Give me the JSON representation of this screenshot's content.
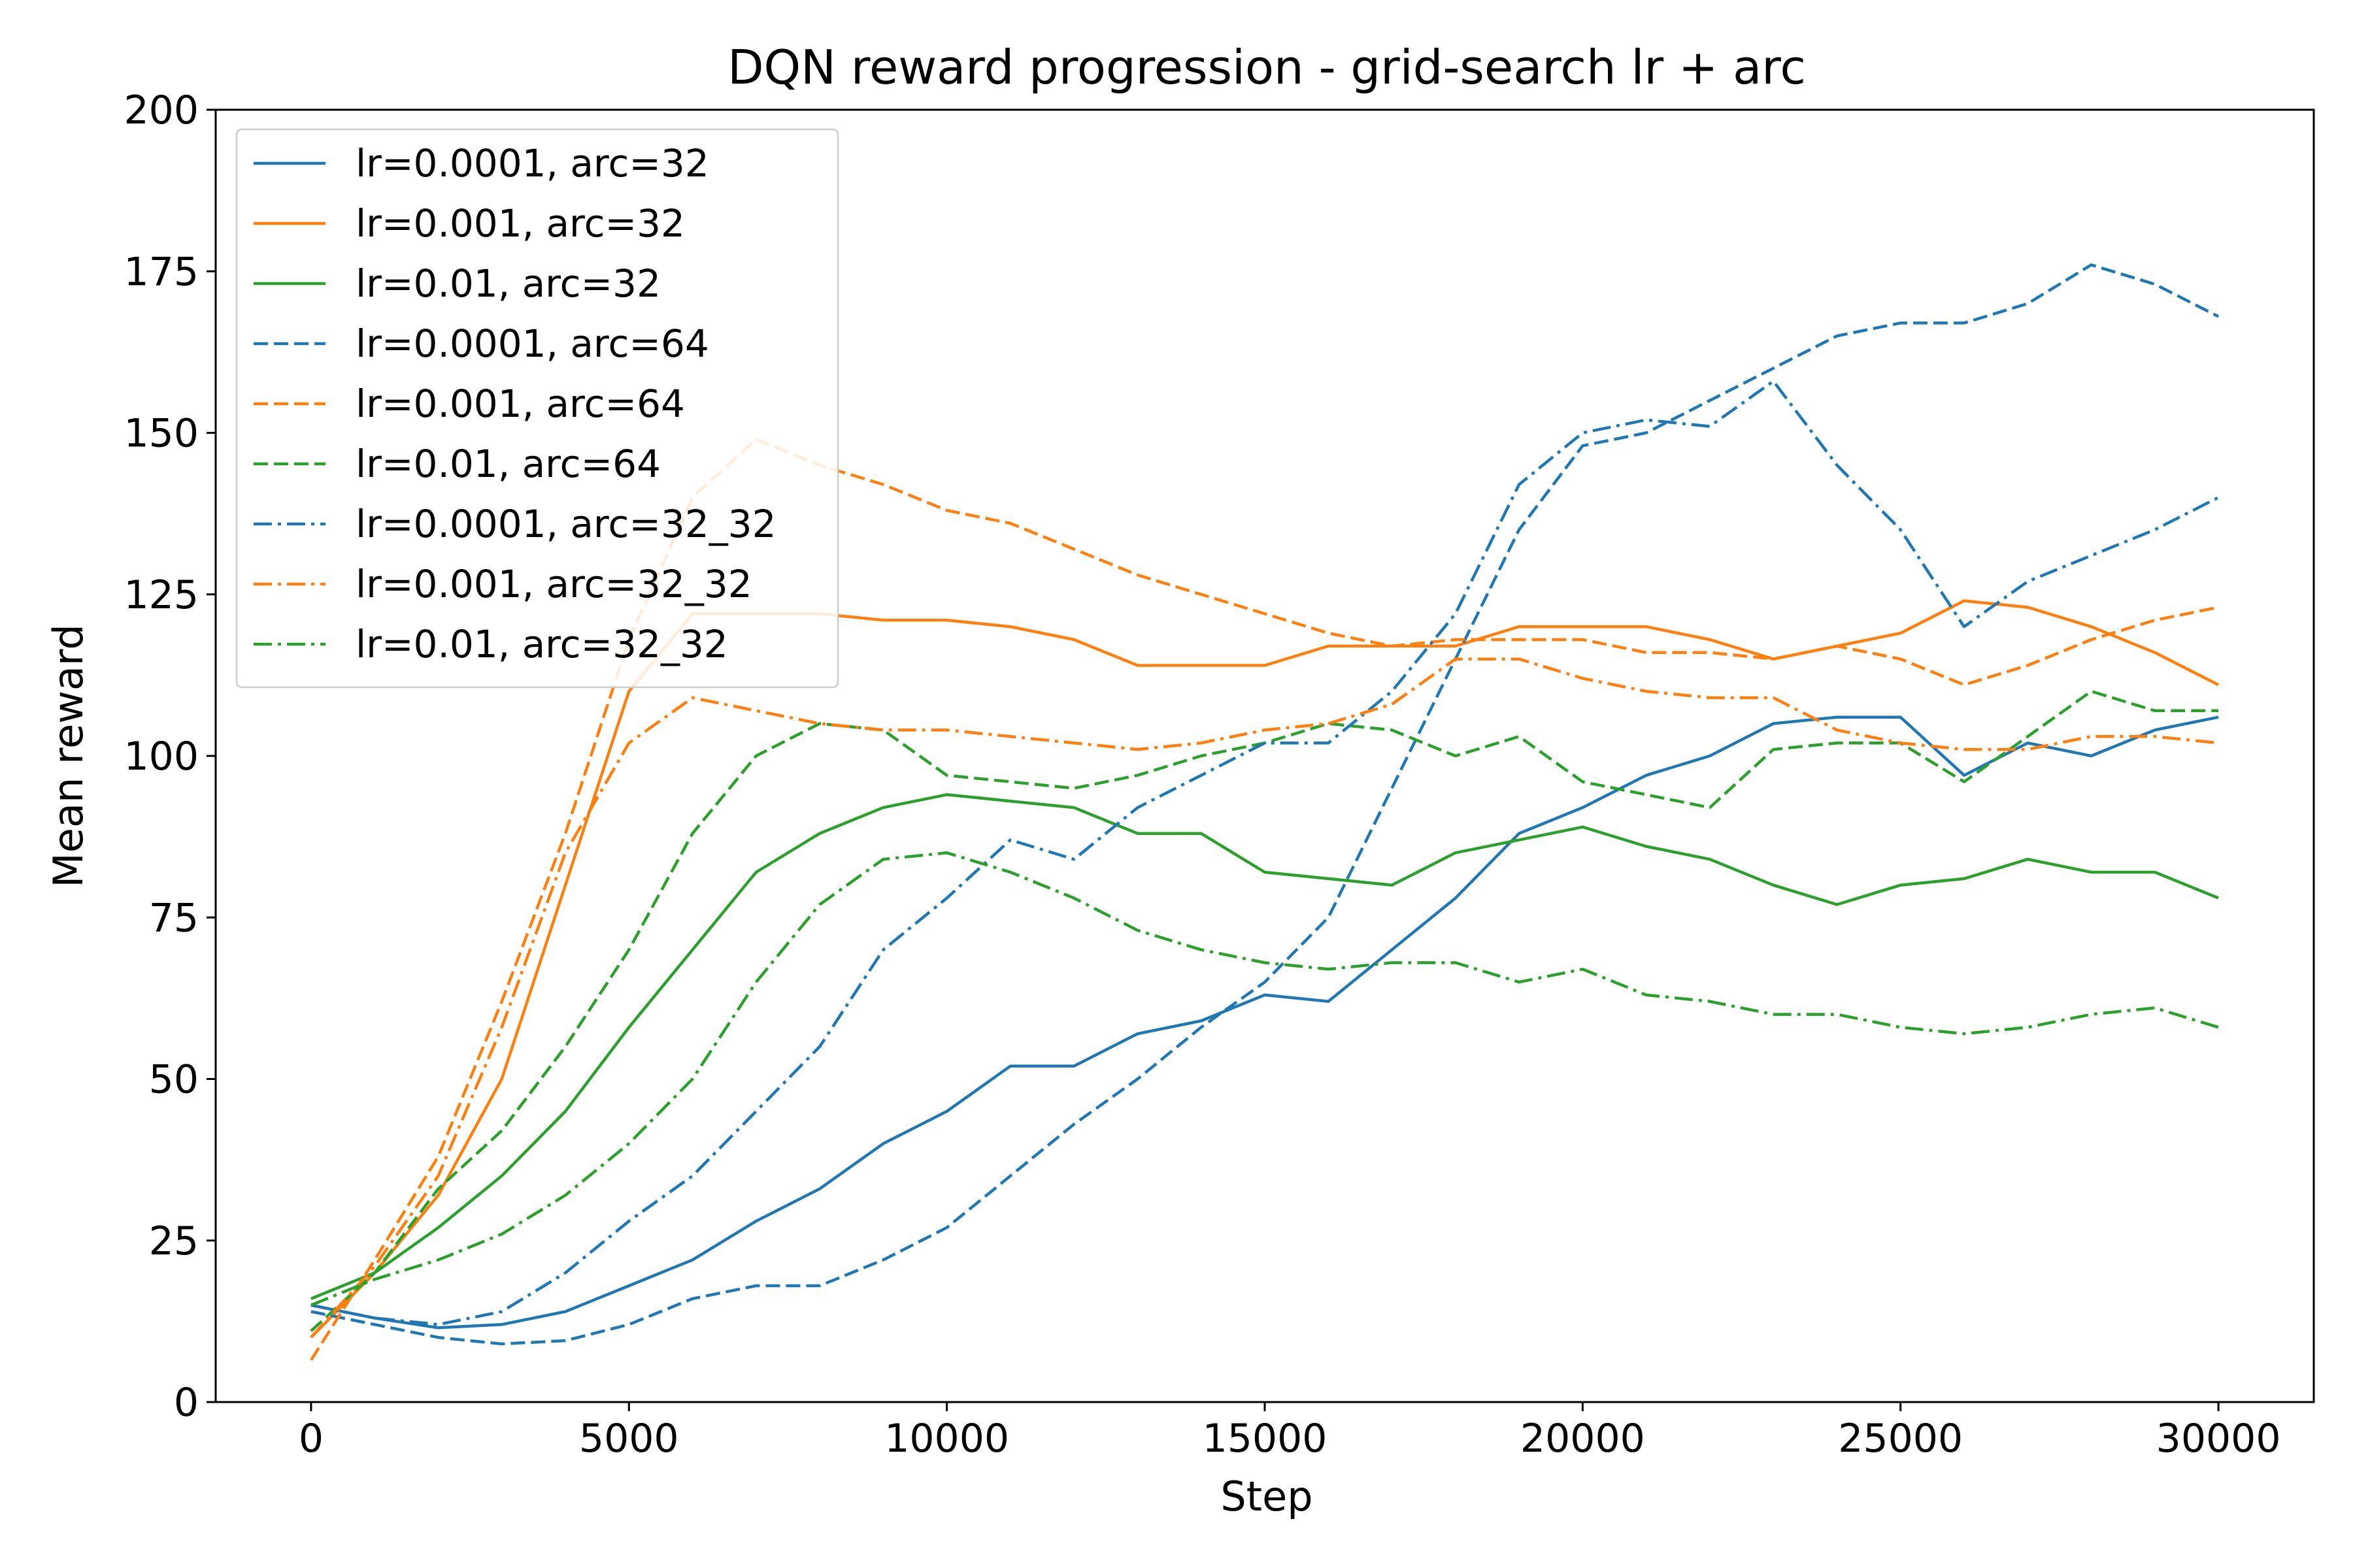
{
  "chart_data": {
    "type": "line",
    "title": "DQN reward progression - grid-search lr + arc",
    "xlabel": "Step",
    "ylabel": "Mean reward",
    "xlim": [
      -1500,
      31500
    ],
    "ylim": [
      0,
      200
    ],
    "xticks": [
      0,
      5000,
      10000,
      15000,
      20000,
      25000,
      30000
    ],
    "yticks": [
      0,
      25,
      50,
      75,
      100,
      125,
      150,
      175,
      200
    ],
    "grid": false,
    "legend_position": "upper-left",
    "series": [
      {
        "name": "lr=0.0001, arc=32",
        "color": "#1f77b4",
        "style": "solid",
        "x": [
          0,
          1000,
          2000,
          3000,
          4000,
          5000,
          6000,
          7000,
          8000,
          9000,
          10000,
          11000,
          12000,
          13000,
          14000,
          15000,
          16000,
          17000,
          18000,
          19000,
          20000,
          21000,
          22000,
          23000,
          24000,
          25000,
          26000,
          27000,
          28000,
          29000,
          30000
        ],
        "y": [
          15,
          13,
          11.5,
          12,
          14,
          18,
          22,
          28,
          33,
          40,
          45,
          52,
          52,
          57,
          59,
          63,
          62,
          70,
          78,
          88,
          92,
          97,
          100,
          105,
          106,
          106,
          97,
          102,
          100,
          104,
          106
        ]
      },
      {
        "name": "lr=0.001, arc=32",
        "color": "#ff7f0e",
        "style": "solid",
        "x": [
          0,
          1000,
          2000,
          3000,
          4000,
          5000,
          6000,
          7000,
          8000,
          9000,
          10000,
          11000,
          12000,
          13000,
          14000,
          15000,
          16000,
          17000,
          18000,
          19000,
          20000,
          21000,
          22000,
          23000,
          24000,
          25000,
          26000,
          27000,
          28000,
          29000,
          30000
        ],
        "y": [
          10,
          20,
          32,
          50,
          80,
          110,
          122,
          122,
          122,
          121,
          121,
          120,
          118,
          114,
          114,
          114,
          117,
          117,
          117,
          120,
          120,
          120,
          118,
          115,
          117,
          119,
          124,
          123,
          120,
          116,
          111
        ]
      },
      {
        "name": "lr=0.01, arc=32",
        "color": "#2ca02c",
        "style": "solid",
        "x": [
          0,
          1000,
          2000,
          3000,
          4000,
          5000,
          6000,
          7000,
          8000,
          9000,
          10000,
          11000,
          12000,
          13000,
          14000,
          15000,
          16000,
          17000,
          18000,
          19000,
          20000,
          21000,
          22000,
          23000,
          24000,
          25000,
          26000,
          27000,
          28000,
          29000,
          30000
        ],
        "y": [
          16,
          20,
          27,
          35,
          45,
          58,
          70,
          82,
          88,
          92,
          94,
          93,
          92,
          88,
          88,
          82,
          81,
          80,
          85,
          87,
          89,
          86,
          84,
          80,
          77,
          80,
          81,
          84,
          82,
          82,
          78
        ]
      },
      {
        "name": "lr=0.0001, arc=64",
        "color": "#1f77b4",
        "style": "dashed",
        "x": [
          0,
          1000,
          2000,
          3000,
          4000,
          5000,
          6000,
          7000,
          8000,
          9000,
          10000,
          11000,
          12000,
          13000,
          14000,
          15000,
          16000,
          17000,
          18000,
          19000,
          20000,
          21000,
          22000,
          23000,
          24000,
          25000,
          26000,
          27000,
          28000,
          29000,
          30000
        ],
        "y": [
          14,
          12,
          10,
          9,
          9.5,
          12,
          16,
          18,
          18,
          22,
          27,
          35,
          43,
          50,
          58,
          65,
          75,
          95,
          115,
          135,
          148,
          150,
          155,
          160,
          165,
          167,
          167,
          170,
          176,
          173,
          168
        ]
      },
      {
        "name": "lr=0.001, arc=64",
        "color": "#ff7f0e",
        "style": "dashed",
        "x": [
          0,
          1000,
          2000,
          3000,
          4000,
          5000,
          6000,
          7000,
          8000,
          9000,
          10000,
          11000,
          12000,
          13000,
          14000,
          15000,
          16000,
          17000,
          18000,
          19000,
          20000,
          21000,
          22000,
          23000,
          24000,
          25000,
          26000,
          27000,
          28000,
          29000,
          30000
        ],
        "y": [
          6.5,
          22,
          38,
          62,
          88,
          118,
          140,
          149,
          145,
          142,
          138,
          136,
          132,
          128,
          125,
          122,
          119,
          117,
          118,
          118,
          118,
          116,
          116,
          115,
          117,
          115,
          111,
          114,
          118,
          121,
          123
        ]
      },
      {
        "name": "lr=0.01, arc=64",
        "color": "#2ca02c",
        "style": "dashed",
        "x": [
          0,
          1000,
          2000,
          3000,
          4000,
          5000,
          6000,
          7000,
          8000,
          9000,
          10000,
          11000,
          12000,
          13000,
          14000,
          15000,
          16000,
          17000,
          18000,
          19000,
          20000,
          21000,
          22000,
          23000,
          24000,
          25000,
          26000,
          27000,
          28000,
          29000,
          30000
        ],
        "y": [
          11,
          20,
          33,
          42,
          55,
          70,
          88,
          100,
          105,
          104,
          97,
          96,
          95,
          97,
          100,
          102,
          105,
          104,
          100,
          103,
          96,
          94,
          92,
          101,
          102,
          102,
          96,
          103,
          110,
          107,
          107
        ]
      },
      {
        "name": "lr=0.0001, arc=32_32",
        "color": "#1f77b4",
        "style": "dashdot",
        "x": [
          0,
          1000,
          2000,
          3000,
          4000,
          5000,
          6000,
          7000,
          8000,
          9000,
          10000,
          11000,
          12000,
          13000,
          14000,
          15000,
          16000,
          17000,
          18000,
          19000,
          20000,
          21000,
          22000,
          23000,
          24000,
          25000,
          26000,
          27000,
          28000,
          29000,
          30000
        ],
        "y": [
          15,
          13,
          12,
          14,
          20,
          28,
          35,
          45,
          55,
          70,
          78,
          87,
          84,
          92,
          97,
          102,
          102,
          110,
          122,
          142,
          150,
          152,
          151,
          158,
          145,
          135,
          120,
          127,
          131,
          135,
          140
        ]
      },
      {
        "name": "lr=0.001, arc=32_32",
        "color": "#ff7f0e",
        "style": "dashdot",
        "x": [
          0,
          1000,
          2000,
          3000,
          4000,
          5000,
          6000,
          7000,
          8000,
          9000,
          10000,
          11000,
          12000,
          13000,
          14000,
          15000,
          16000,
          17000,
          18000,
          19000,
          20000,
          21000,
          22000,
          23000,
          24000,
          25000,
          26000,
          27000,
          28000,
          29000,
          30000
        ],
        "y": [
          10,
          21,
          35,
          58,
          85,
          102,
          109,
          107,
          105,
          104,
          104,
          103,
          102,
          101,
          102,
          104,
          105,
          108,
          115,
          115,
          112,
          110,
          109,
          109,
          104,
          102,
          101,
          101,
          103,
          103,
          102
        ]
      },
      {
        "name": "lr=0.01, arc=32_32",
        "color": "#2ca02c",
        "style": "dashdot",
        "x": [
          0,
          1000,
          2000,
          3000,
          4000,
          5000,
          6000,
          7000,
          8000,
          9000,
          10000,
          11000,
          12000,
          13000,
          14000,
          15000,
          16000,
          17000,
          18000,
          19000,
          20000,
          21000,
          22000,
          23000,
          24000,
          25000,
          26000,
          27000,
          28000,
          29000,
          30000
        ],
        "y": [
          15,
          19,
          22,
          26,
          32,
          40,
          50,
          65,
          77,
          84,
          85,
          82,
          78,
          73,
          70,
          68,
          67,
          68,
          68,
          65,
          67,
          63,
          62,
          60,
          60,
          58,
          57,
          58,
          60,
          61,
          58
        ]
      }
    ]
  }
}
